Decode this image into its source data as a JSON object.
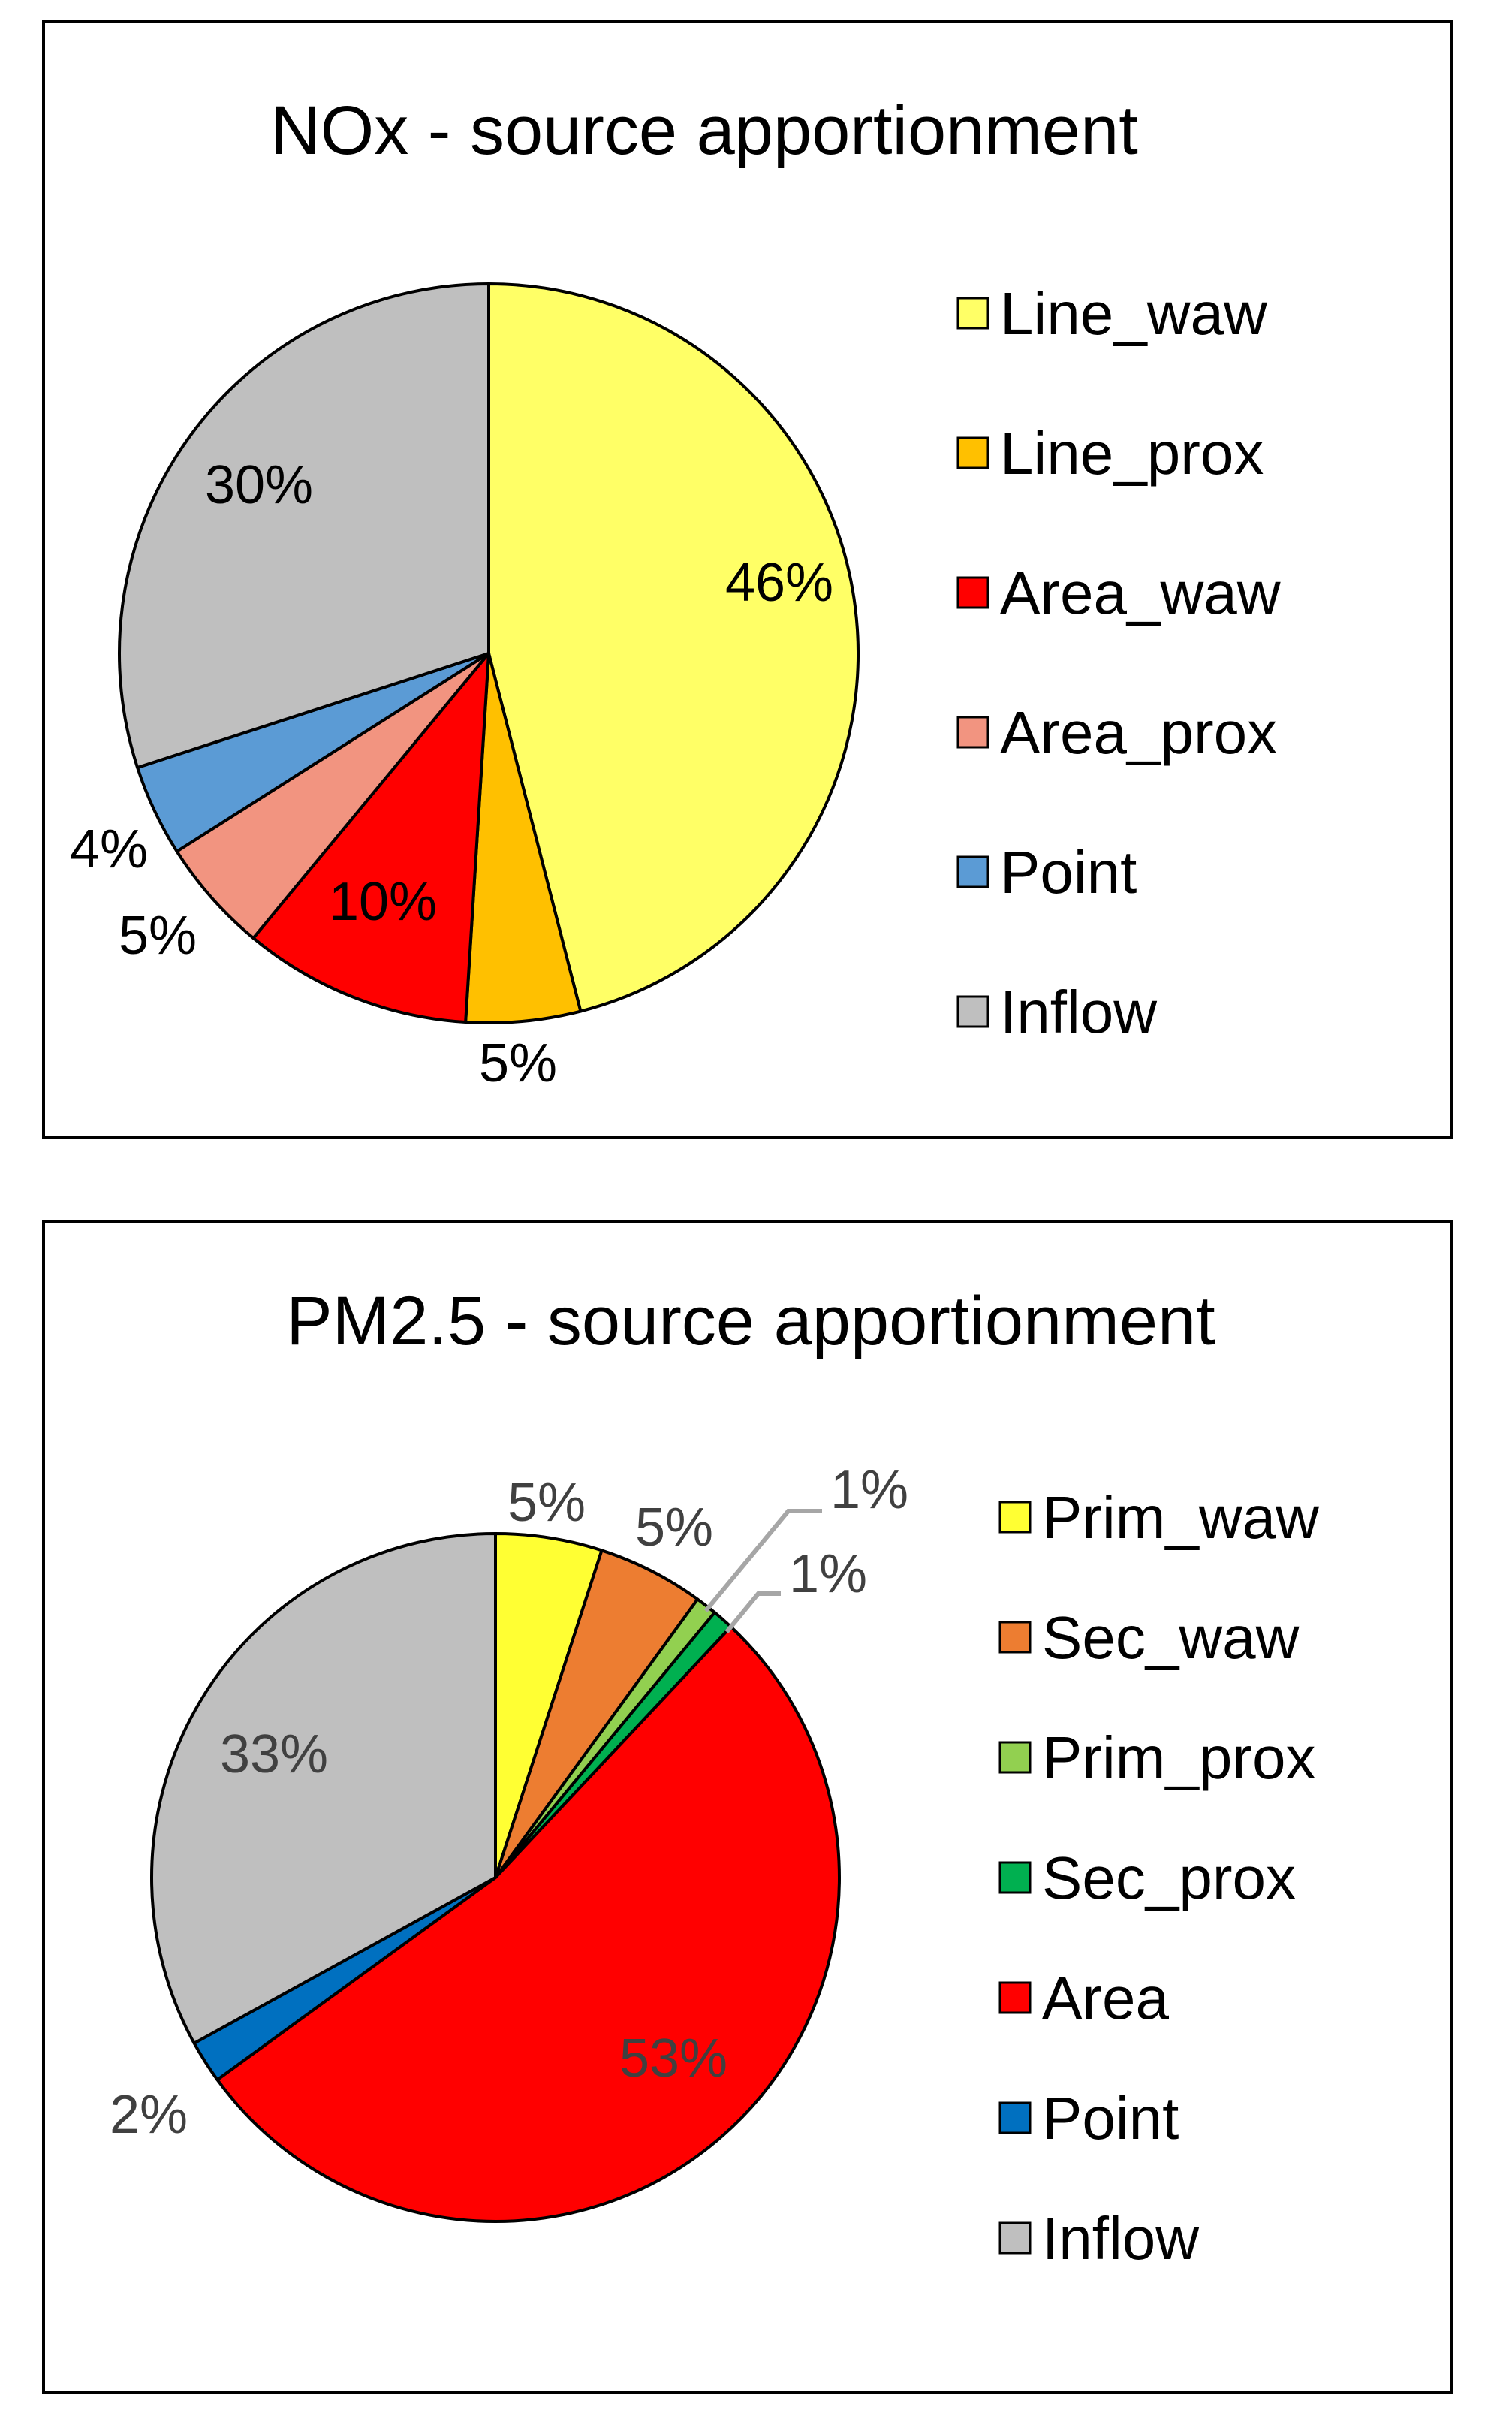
{
  "chart_data": [
    {
      "type": "pie",
      "title": "NOx - source apportionment",
      "legend_position": "right",
      "categories": [
        "Line_waw",
        "Line_prox",
        "Area_waw",
        "Area_prox",
        "Point",
        "Inflow"
      ],
      "values": [
        46,
        5,
        10,
        5,
        4,
        30
      ],
      "labels": [
        "46%",
        "5%",
        "10%",
        "5%",
        "4%",
        "30%"
      ],
      "colors": [
        "#FFFF66",
        "#FFC000",
        "#FF0000",
        "#F29480",
        "#5B9BD5",
        "#BFBFBF"
      ]
    },
    {
      "type": "pie",
      "title": "PM2.5 - source apportionment",
      "legend_position": "right",
      "categories": [
        "Prim_waw",
        "Sec_waw",
        "Prim_prox",
        "Sec_prox",
        "Area",
        "Point",
        "Inflow"
      ],
      "values": [
        5,
        5,
        1,
        1,
        53,
        2,
        33
      ],
      "labels": [
        "5%",
        "5%",
        "1%",
        "1%",
        "53%",
        "2%",
        "33%"
      ],
      "colors": [
        "#FFFF33",
        "#ED7D31",
        "#92D050",
        "#00B050",
        "#FF0000",
        "#0070C0",
        "#BFBFBF"
      ]
    }
  ]
}
